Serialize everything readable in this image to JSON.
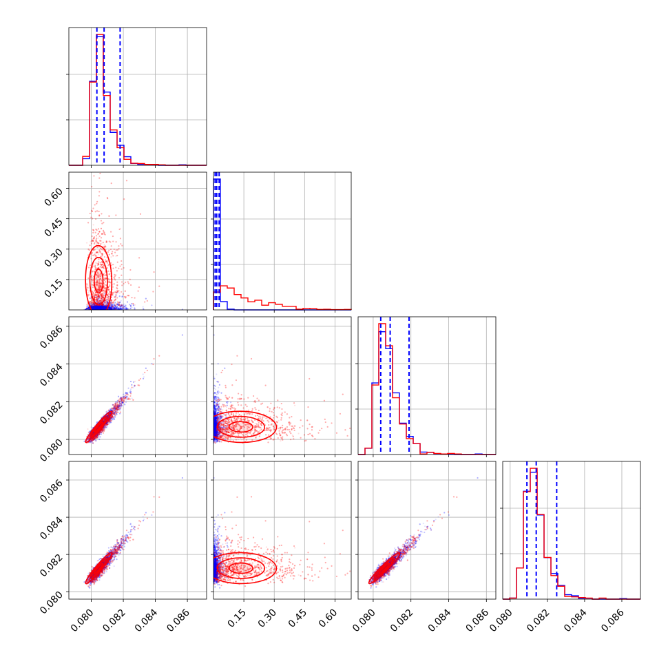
{
  "chart_data": {
    "type": "corner",
    "parameters": 4,
    "grid": true,
    "colors": {
      "blue": "#0000ff",
      "red": "#ff0000"
    },
    "series": [
      {
        "color": "#0000ff",
        "params": [
          {
            "mean": 0.08085,
            "sd": 0.0008,
            "min": 0.0793
          },
          {
            "mean": 0.018,
            "sd": 0.02,
            "min": 0.0
          },
          {
            "mean": 0.0809,
            "sd": 0.0008,
            "min": 0.0795
          },
          {
            "mean": 0.0815,
            "sd": 0.0008,
            "min": 0.0798
          }
        ]
      },
      {
        "color": "#ff0000",
        "params": [
          {
            "mean": 0.0809,
            "sd": 0.0007,
            "min": 0.0793
          },
          {
            "mean": 0.09,
            "sd": 0.1,
            "min": 0.0
          },
          {
            "mean": 0.0809,
            "sd": 0.0007,
            "min": 0.0795
          },
          {
            "mean": 0.0819,
            "sd": 0.0008,
            "min": 0.0798
          }
        ]
      }
    ],
    "quantile_lines": [
      [
        0.08035,
        0.0808,
        0.0818
      ],
      [
        0.008,
        0.016,
        0.028
      ],
      [
        0.0804,
        0.0809,
        0.0819
      ],
      [
        0.0809,
        0.0814,
        0.0825
      ]
    ],
    "axes": [
      {
        "range": [
          0.0786,
          0.0872
        ],
        "ticks": [
          0.08,
          0.082,
          0.084,
          0.086
        ],
        "tick_labels": [
          "0.080",
          "0.082",
          "0.084",
          "0.086"
        ]
      },
      {
        "range": [
          0.0,
          0.68
        ],
        "ticks": [
          0.15,
          0.3,
          0.45,
          0.6
        ],
        "tick_labels": [
          "0.15",
          "0.30",
          "0.45",
          "0.60"
        ]
      },
      {
        "range": [
          0.0792,
          0.0865
        ],
        "ticks": [
          0.08,
          0.082,
          0.084,
          0.086
        ],
        "tick_labels": [
          "0.080",
          "0.082",
          "0.084",
          "0.086"
        ]
      },
      {
        "range": [
          0.0796,
          0.087
        ],
        "ticks": [
          0.08,
          0.082,
          0.084,
          0.086
        ],
        "tick_labels": [
          "0.080",
          "0.082",
          "0.084",
          "0.086"
        ]
      }
    ]
  }
}
